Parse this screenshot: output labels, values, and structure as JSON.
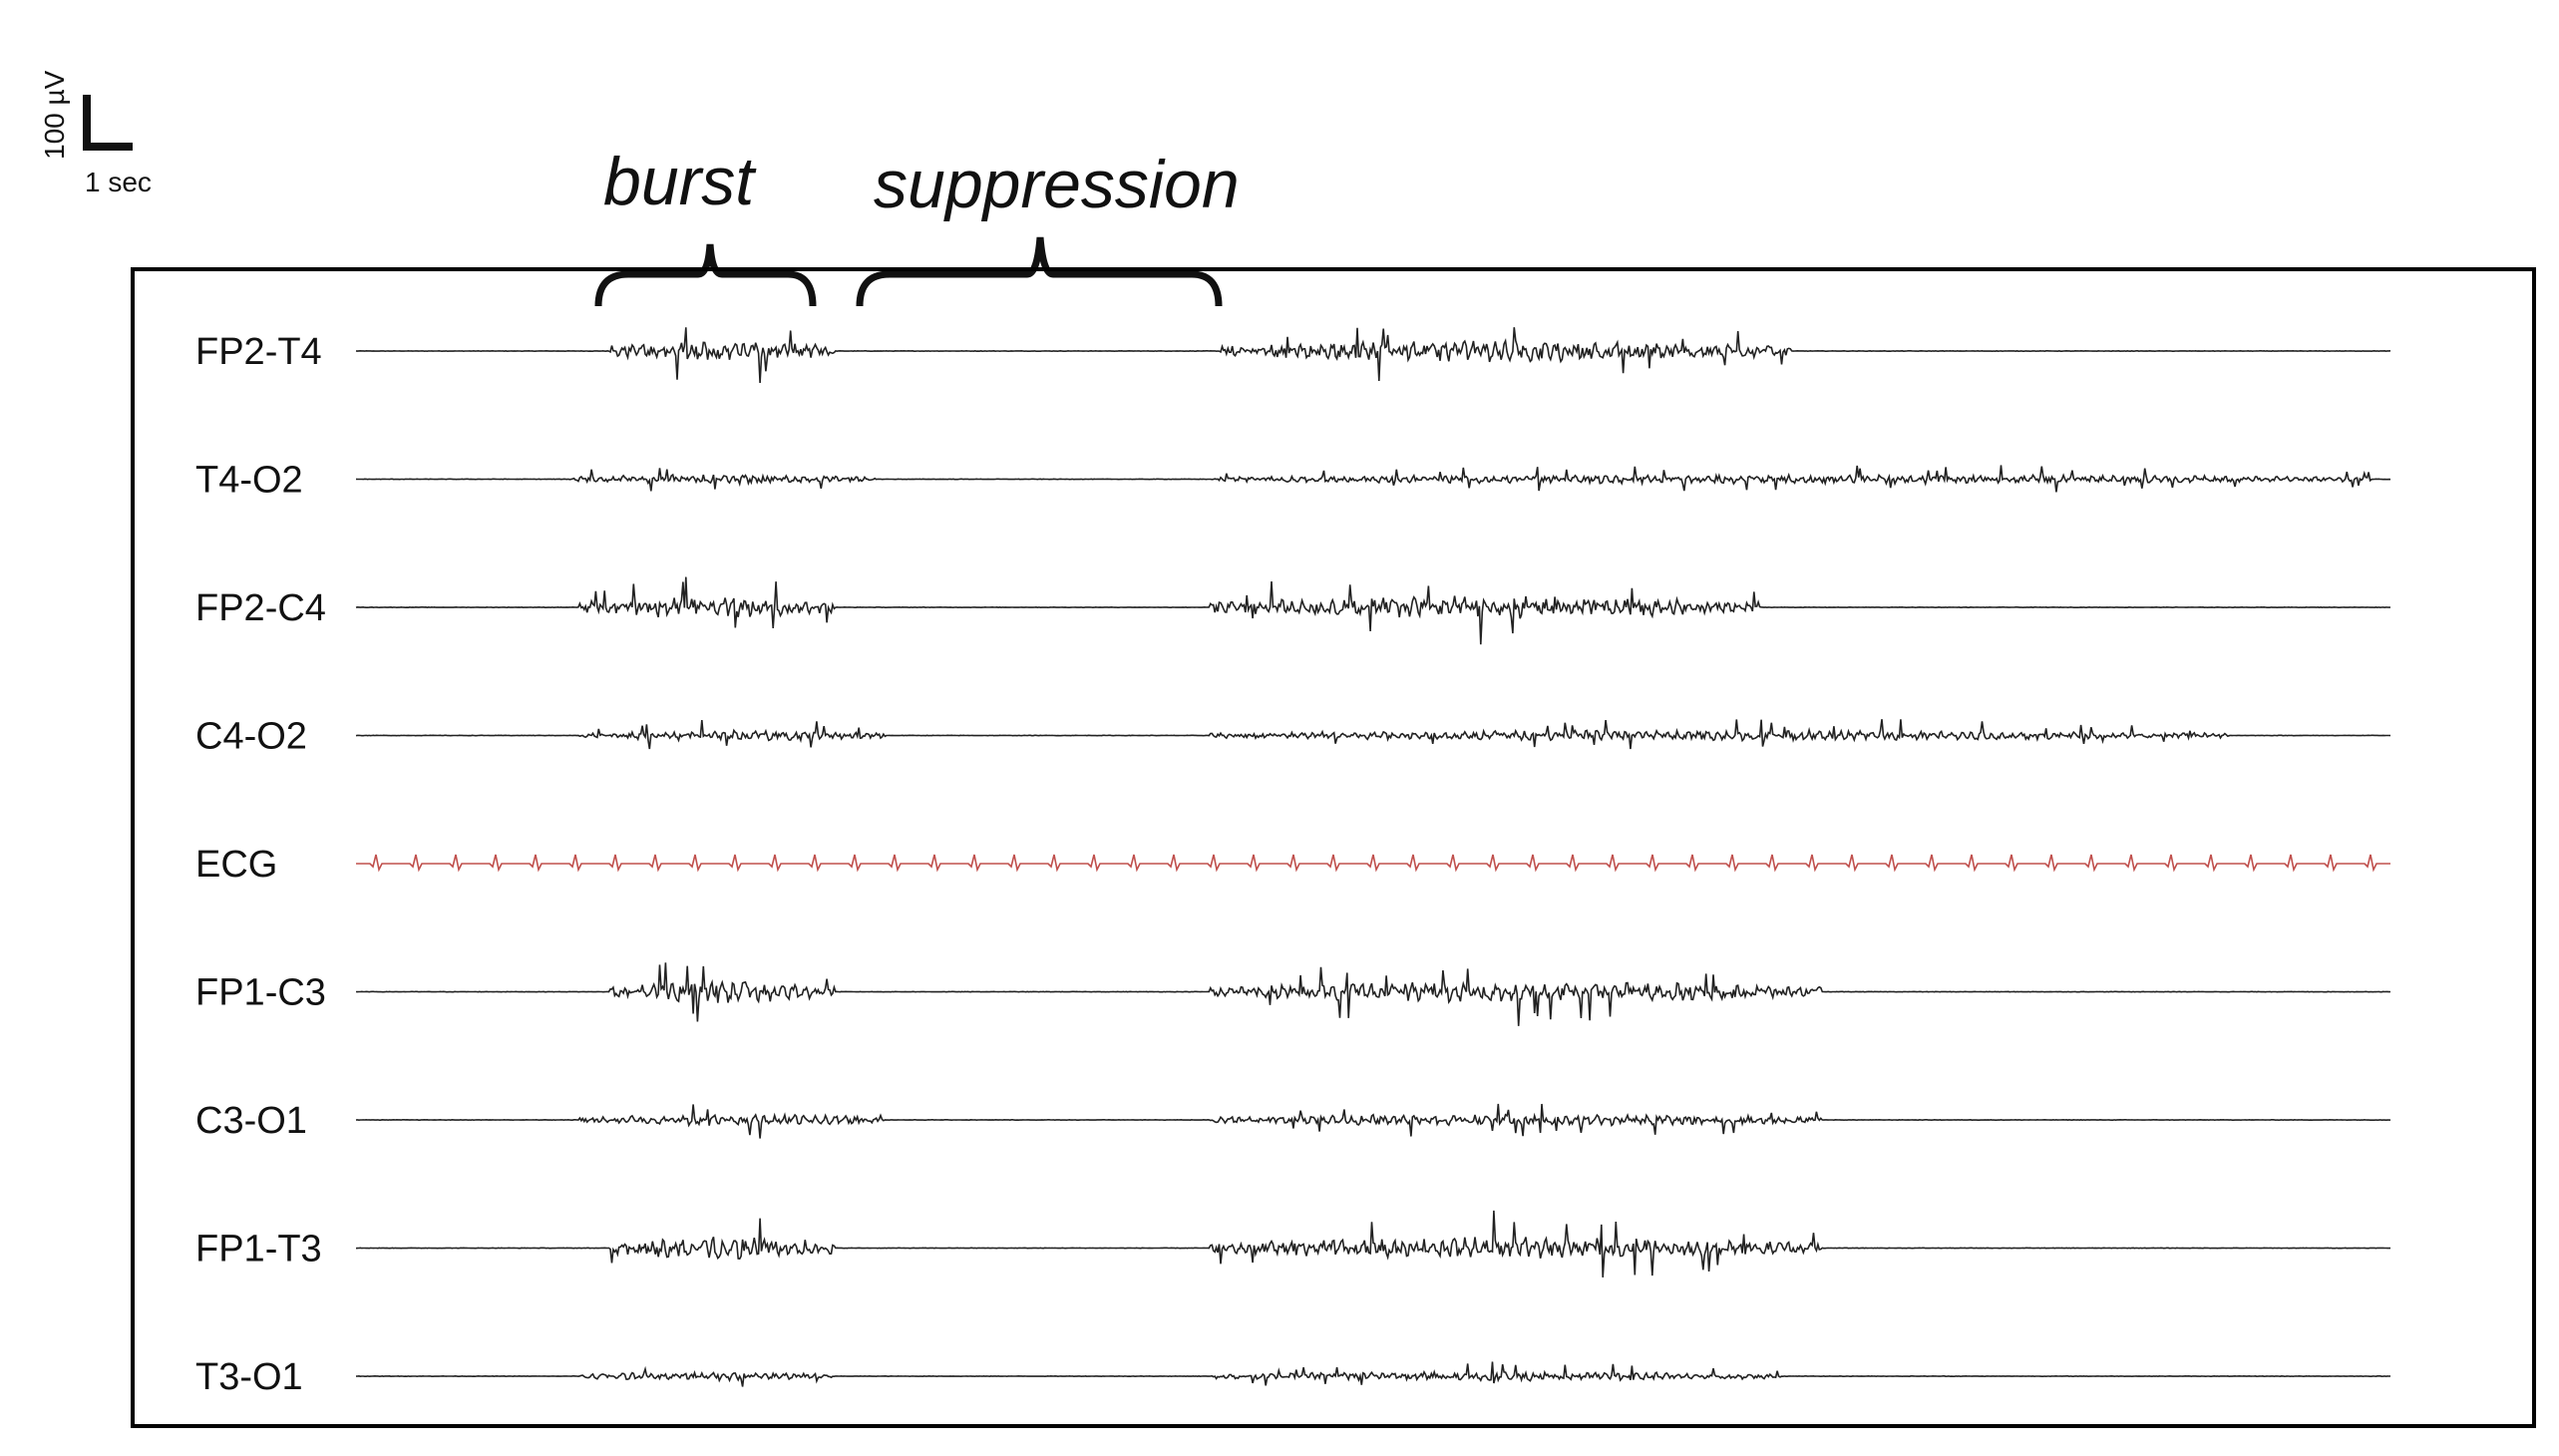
{
  "scale_bar": {
    "amplitude": "100 µV",
    "time": "1 sec"
  },
  "annotations": {
    "burst": "burst",
    "suppression": "suppression"
  },
  "channels": [
    {
      "label": "FP2-T4",
      "bursts": [
        {
          "start": 0.125,
          "end": 0.235,
          "amp": 1.0
        },
        {
          "start": 0.425,
          "end": 0.705,
          "amp": 1.0
        }
      ]
    },
    {
      "label": "T4-O2",
      "bursts": [
        {
          "start": 0.105,
          "end": 0.255,
          "amp": 0.45
        },
        {
          "start": 0.42,
          "end": 0.99,
          "amp": 0.45
        }
      ]
    },
    {
      "label": "FP2-C4",
      "bursts": [
        {
          "start": 0.11,
          "end": 0.235,
          "amp": 1.0
        },
        {
          "start": 0.42,
          "end": 0.69,
          "amp": 1.05
        }
      ]
    },
    {
      "label": "C4-O2",
      "bursts": [
        {
          "start": 0.11,
          "end": 0.26,
          "amp": 0.5
        },
        {
          "start": 0.42,
          "end": 0.92,
          "amp": 0.5
        }
      ]
    },
    {
      "label": "ECG",
      "type": "ecg",
      "beats": 51,
      "color": "#c0504d"
    },
    {
      "label": "FP1-C3",
      "bursts": [
        {
          "start": 0.125,
          "end": 0.235,
          "amp": 1.05
        },
        {
          "start": 0.42,
          "end": 0.72,
          "amp": 1.0
        }
      ]
    },
    {
      "label": "C3-O1",
      "bursts": [
        {
          "start": 0.11,
          "end": 0.26,
          "amp": 0.55
        },
        {
          "start": 0.42,
          "end": 0.72,
          "amp": 0.55
        }
      ]
    },
    {
      "label": "FP1-T3",
      "bursts": [
        {
          "start": 0.125,
          "end": 0.235,
          "amp": 1.1
        },
        {
          "start": 0.42,
          "end": 0.72,
          "amp": 1.05
        }
      ]
    },
    {
      "label": "T3-O1",
      "bursts": [
        {
          "start": 0.11,
          "end": 0.235,
          "amp": 0.4
        },
        {
          "start": 0.42,
          "end": 0.7,
          "amp": 0.45
        }
      ]
    }
  ],
  "colors": {
    "trace": "#222222",
    "ecg": "#c0504d",
    "frame": "#000000"
  }
}
